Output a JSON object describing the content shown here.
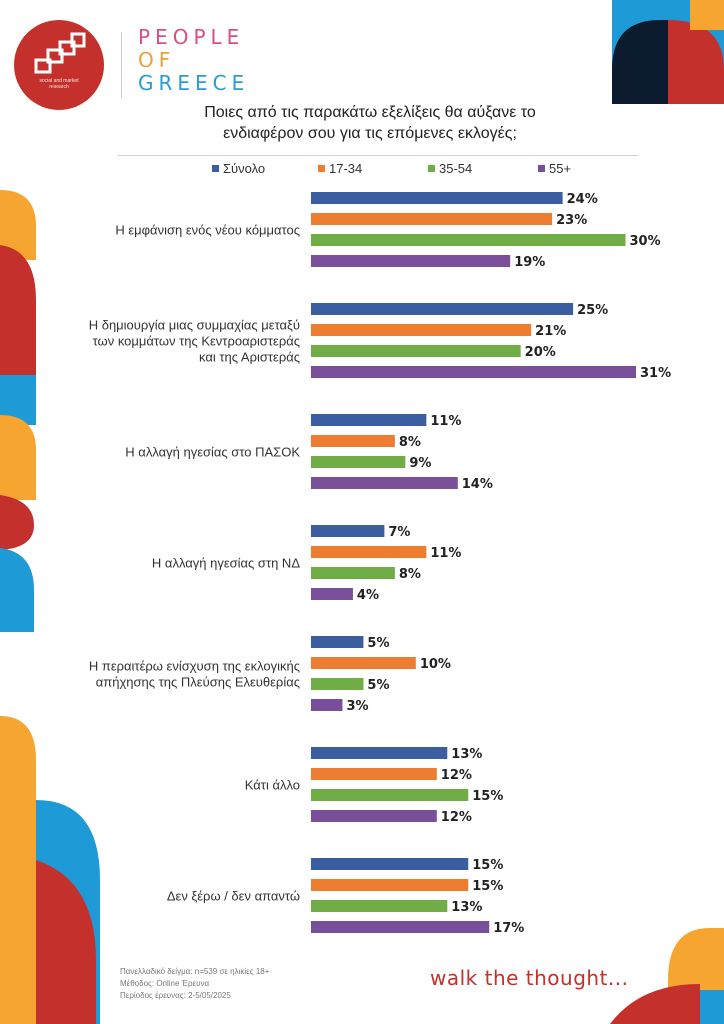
{
  "brand": {
    "logo_caption_line1": "social and market",
    "logo_caption_line2": "research",
    "name_line1": "PEOPLE",
    "name_line2": "OF",
    "name_line3": "GREECE"
  },
  "question": {
    "line1": "Ποιες από τις παρακάτω εξελίξεις θα αύξανε το",
    "line2": "ενδιαφέρον σου για τις επόμενες εκλογές;"
  },
  "footer": {
    "sample": "Πανελλαδικό δείγμα: n=539 σε ηλικίες 18+",
    "method": "Μέθοδος: Online Έρευνα",
    "period": "Περίοδος έρευνας: 2-5/05/2025",
    "tagline": "walk the thought..."
  },
  "colors": {
    "total": "#3a5ea0",
    "age_17_34": "#ed7d31",
    "age_35_54": "#70ad47",
    "age_55_plus": "#7a4f9a",
    "brand_red": "#c4302b",
    "accent_yellow": "#f6a531",
    "accent_blue": "#1e9bd7"
  },
  "chart_data": {
    "type": "bar",
    "orientation": "horizontal",
    "categories": [
      [
        "Η εμφάνιση ενός νέου κόμματος"
      ],
      [
        "Η δημιουργία μιας συμμαχίας μεταξύ",
        "των κομμάτων της Κεντροαριστεράς",
        "και της Αριστεράς"
      ],
      [
        "Η αλλαγή ηγεσίας στο ΠΑΣΟΚ"
      ],
      [
        "Η αλλαγή ηγεσίας στη ΝΔ"
      ],
      [
        "Η περαιτέρω ενίσχυση της εκλογικής",
        "απήχησης της Πλεύσης Ελευθερίας"
      ],
      [
        "Κάτι άλλο"
      ],
      [
        "Δεν ξέρω / δεν απαντώ"
      ]
    ],
    "series": [
      {
        "name": "Σύνολο",
        "color": "#3a5ea0",
        "values": [
          24,
          25,
          11,
          7,
          5,
          13,
          15
        ]
      },
      {
        "name": "17-34",
        "color": "#ed7d31",
        "values": [
          23,
          21,
          8,
          11,
          10,
          12,
          15
        ]
      },
      {
        "name": "35-54",
        "color": "#70ad47",
        "values": [
          30,
          20,
          9,
          8,
          5,
          15,
          13
        ]
      },
      {
        "name": "55+",
        "color": "#7a4f9a",
        "values": [
          19,
          31,
          14,
          4,
          3,
          12,
          17
        ]
      }
    ],
    "value_suffix": "%",
    "xlim": [
      0,
      31
    ],
    "legend_position": "top",
    "grid": false
  }
}
